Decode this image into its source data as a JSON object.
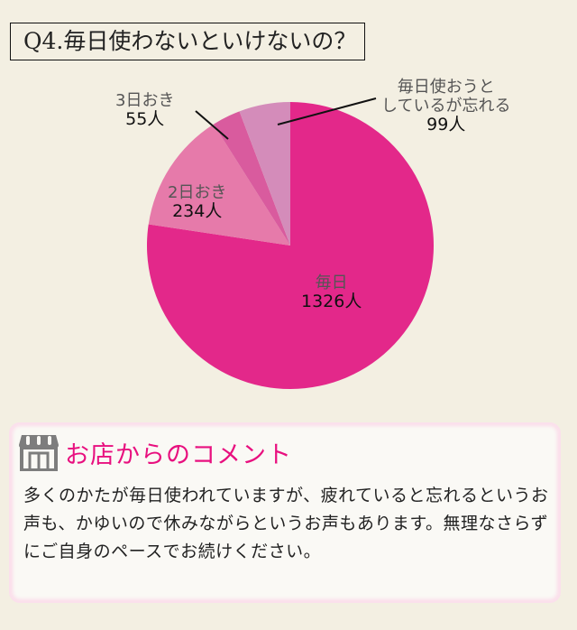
{
  "title": "Q4.毎日使わないといけないの？",
  "chart_data": {
    "type": "pie",
    "title": "Q4.毎日使わないといけないの？",
    "start_angle_deg": 0,
    "direction": "clockwise",
    "slices": [
      {
        "label": "毎日",
        "value": 1326,
        "unit": "人",
        "color": "#e3288a"
      },
      {
        "label": "2日おき",
        "value": 234,
        "unit": "人",
        "color": "#e67aaa"
      },
      {
        "label": "3日おき",
        "value": 55,
        "unit": "人",
        "color": "#d95b9e"
      },
      {
        "label": "毎日使おうとしているが忘れる",
        "value": 99,
        "unit": "人",
        "color": "#d48cba"
      }
    ],
    "categories": [
      "毎日",
      "2日おき",
      "3日おき",
      "毎日使おうとしているが忘れる"
    ],
    "values": [
      1326,
      234,
      55,
      99
    ]
  },
  "labels": {
    "daily": {
      "name": "毎日",
      "count": "1326人"
    },
    "every2": {
      "name": "2日おき",
      "count": "234人"
    },
    "every3": {
      "name": "3日おき",
      "count": "55人"
    },
    "forget": {
      "name_line1": "毎日使おうと",
      "name_line2": "しているが忘れる",
      "count": "99人"
    }
  },
  "comment": {
    "icon": "shop-icon",
    "title": "お店からのコメント",
    "text": "多くのかたが毎日使われていますが、疲れていると忘れるというお声も、かゆいので休みながらというお声もあります。無理なさらずにご自身のペースでお続けください。",
    "title_color": "#e8107f"
  }
}
